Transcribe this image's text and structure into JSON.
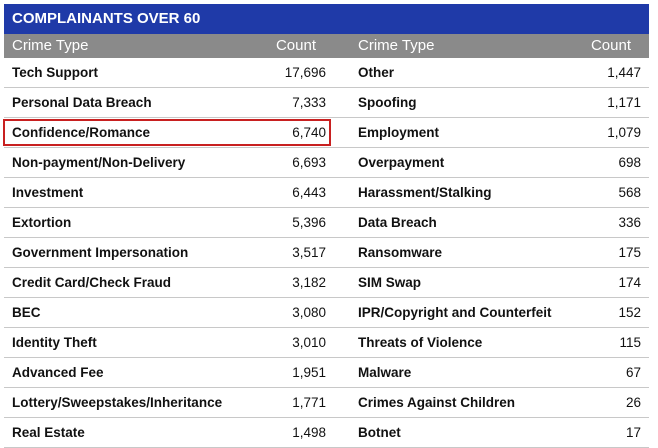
{
  "title": "COMPLAINANTS OVER 60",
  "headers": {
    "crime_type": "Crime Type",
    "count": "Count"
  },
  "rows": [
    {
      "left_type": "Tech Support",
      "left_count": "17,696",
      "right_type": "Other",
      "right_count": "1,447"
    },
    {
      "left_type": "Personal Data Breach",
      "left_count": "7,333",
      "right_type": "Spoofing",
      "right_count": "1,171"
    },
    {
      "left_type": "Confidence/Romance",
      "left_count": "6,740",
      "right_type": "Employment",
      "right_count": "1,079"
    },
    {
      "left_type": "Non-payment/Non-Delivery",
      "left_count": "6,693",
      "right_type": "Overpayment",
      "right_count": "698"
    },
    {
      "left_type": "Investment",
      "left_count": "6,443",
      "right_type": "Harassment/Stalking",
      "right_count": "568"
    },
    {
      "left_type": "Extortion",
      "left_count": "5,396",
      "right_type": "Data Breach",
      "right_count": "336"
    },
    {
      "left_type": "Government Impersonation",
      "left_count": "3,517",
      "right_type": "Ransomware",
      "right_count": "175"
    },
    {
      "left_type": "Credit Card/Check Fraud",
      "left_count": "3,182",
      "right_type": "SIM Swap",
      "right_count": "174"
    },
    {
      "left_type": "BEC",
      "left_count": "3,080",
      "right_type": "IPR/Copyright and Counterfeit",
      "right_count": "152"
    },
    {
      "left_type": "Identity Theft",
      "left_count": "3,010",
      "right_type": "Threats of Violence",
      "right_count": "115"
    },
    {
      "left_type": "Advanced Fee",
      "left_count": "1,951",
      "right_type": "Malware",
      "right_count": "67"
    },
    {
      "left_type": "Lottery/Sweepstakes/Inheritance",
      "left_count": "1,771",
      "right_type": "Crimes Against Children",
      "right_count": "26"
    },
    {
      "left_type": "Real Estate",
      "left_count": "1,498",
      "right_type": "Botnet",
      "right_count": "17"
    }
  ],
  "highlighted_row": 2,
  "colors": {
    "title_bg": "#1f3aa8",
    "header_bg": "#8a8a8a",
    "highlight": "#c82020"
  }
}
